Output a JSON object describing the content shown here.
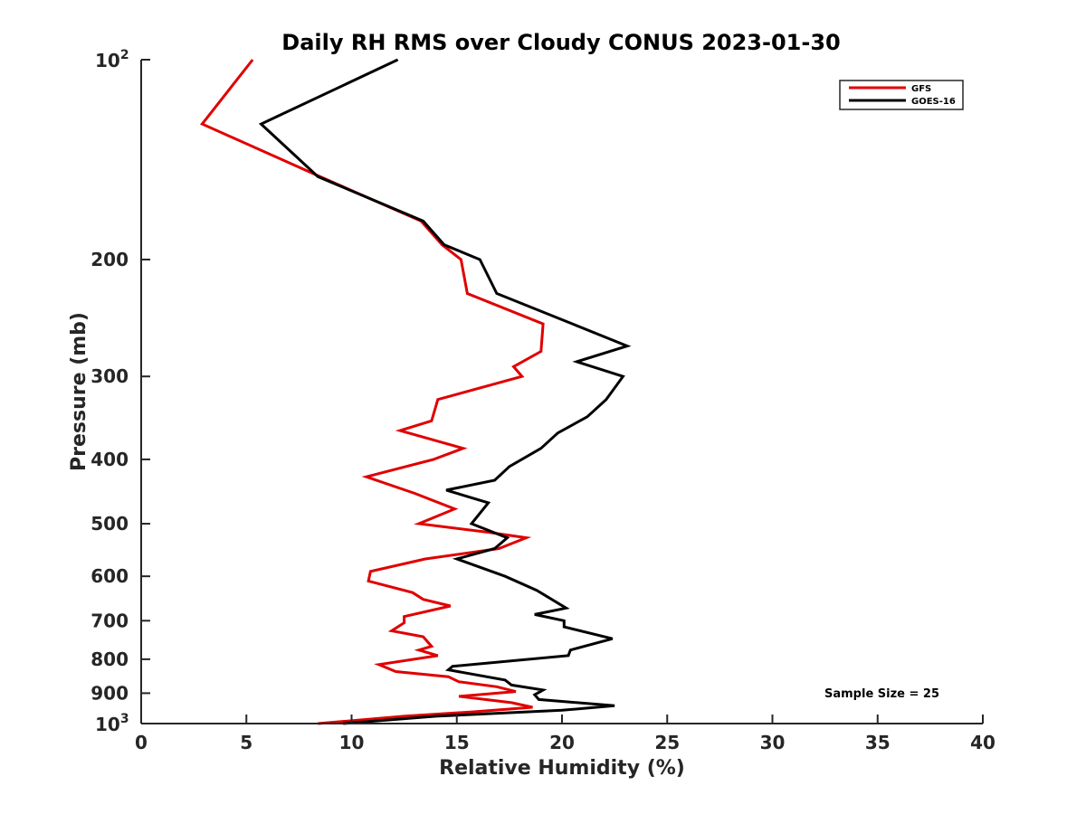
{
  "chart_data": {
    "type": "line",
    "title": "Daily RH RMS over Cloudy CONUS 2023-01-30",
    "xlabel": "Relative Humidity (%)",
    "ylabel": "Pressure (mb)",
    "xlim": [
      0,
      40
    ],
    "ylim": [
      100,
      1000
    ],
    "y_scale": "log",
    "y_reversed": true,
    "grid": false,
    "legend_position": "top-right",
    "x_ticks": [
      "0",
      "5",
      "10",
      "15",
      "20",
      "25",
      "30",
      "35",
      "40"
    ],
    "y_ticks": [
      {
        "value": 100,
        "base": "10",
        "exp": "2"
      },
      {
        "value": 200,
        "label": "200"
      },
      {
        "value": 300,
        "label": "300"
      },
      {
        "value": 400,
        "label": "400"
      },
      {
        "value": 500,
        "label": "500"
      },
      {
        "value": 600,
        "label": "600"
      },
      {
        "value": 700,
        "label": "700"
      },
      {
        "value": 800,
        "label": "800"
      },
      {
        "value": 900,
        "label": "900"
      },
      {
        "value": 1000,
        "base": "10",
        "exp": "3"
      }
    ],
    "annotation": "Sample Size = 25",
    "series": [
      {
        "name": "GFS",
        "color": "#e00000",
        "points": [
          [
            5.3,
            100
          ],
          [
            2.9,
            125
          ],
          [
            8.5,
            150
          ],
          [
            13.3,
            175
          ],
          [
            14.3,
            190
          ],
          [
            15.2,
            200
          ],
          [
            15.5,
            225
          ],
          [
            19.1,
            250
          ],
          [
            19.0,
            275
          ],
          [
            17.7,
            290
          ],
          [
            18.1,
            300
          ],
          [
            14.1,
            325
          ],
          [
            13.8,
            350
          ],
          [
            12.3,
            362
          ],
          [
            15.3,
            385
          ],
          [
            13.9,
            400
          ],
          [
            10.7,
            425
          ],
          [
            13.0,
            450
          ],
          [
            14.9,
            475
          ],
          [
            13.2,
            500
          ],
          [
            16.5,
            515
          ],
          [
            18.3,
            525
          ],
          [
            17.0,
            545
          ],
          [
            13.5,
            565
          ],
          [
            10.9,
            590
          ],
          [
            10.8,
            610
          ],
          [
            12.9,
            635
          ],
          [
            13.4,
            650
          ],
          [
            14.7,
            665
          ],
          [
            12.5,
            690
          ],
          [
            12.5,
            705
          ],
          [
            11.9,
            725
          ],
          [
            13.4,
            740
          ],
          [
            13.8,
            765
          ],
          [
            13.2,
            775
          ],
          [
            14.1,
            790
          ],
          [
            11.3,
            815
          ],
          [
            12.1,
            835
          ],
          [
            14.6,
            850
          ],
          [
            15.1,
            865
          ],
          [
            16.9,
            880
          ],
          [
            17.8,
            895
          ],
          [
            15.1,
            910
          ],
          [
            17.6,
            930
          ],
          [
            18.6,
            945
          ],
          [
            15.8,
            960
          ],
          [
            12.5,
            975
          ],
          [
            8.4,
            1000
          ]
        ]
      },
      {
        "name": "GOES-16",
        "color": "#000000",
        "points": [
          [
            12.2,
            100
          ],
          [
            5.7,
            125
          ],
          [
            8.4,
            150
          ],
          [
            13.4,
            175
          ],
          [
            14.4,
            190
          ],
          [
            16.1,
            200
          ],
          [
            16.9,
            225
          ],
          [
            20.5,
            250
          ],
          [
            23.1,
            270
          ],
          [
            20.7,
            285
          ],
          [
            22.9,
            300
          ],
          [
            22.1,
            325
          ],
          [
            21.2,
            345
          ],
          [
            19.8,
            365
          ],
          [
            19.0,
            385
          ],
          [
            17.5,
            410
          ],
          [
            16.8,
            430
          ],
          [
            14.5,
            445
          ],
          [
            16.5,
            465
          ],
          [
            15.7,
            500
          ],
          [
            17.4,
            525
          ],
          [
            16.8,
            545
          ],
          [
            15.0,
            565
          ],
          [
            17.3,
            600
          ],
          [
            18.8,
            630
          ],
          [
            20.2,
            670
          ],
          [
            18.7,
            685
          ],
          [
            20.1,
            700
          ],
          [
            20.1,
            715
          ],
          [
            22.4,
            745
          ],
          [
            20.4,
            775
          ],
          [
            20.3,
            790
          ],
          [
            14.8,
            820
          ],
          [
            14.6,
            830
          ],
          [
            17.3,
            860
          ],
          [
            17.6,
            875
          ],
          [
            19.1,
            890
          ],
          [
            18.7,
            905
          ],
          [
            18.9,
            920
          ],
          [
            22.5,
            940
          ],
          [
            20.0,
            955
          ],
          [
            14.0,
            975
          ],
          [
            9.6,
            1000
          ]
        ]
      }
    ]
  }
}
